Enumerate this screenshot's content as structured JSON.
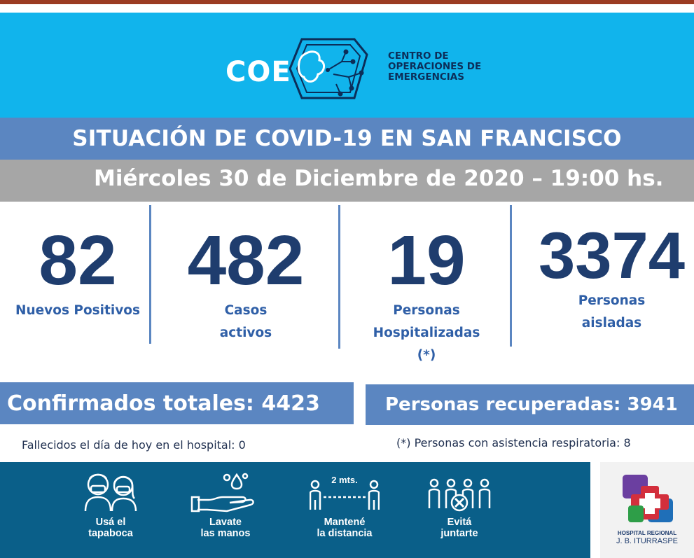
{
  "logo": {
    "acronym": "COE",
    "line1": "CENTRO DE",
    "line2": "OPERACIONES DE",
    "line3": "EMERGENCIAS"
  },
  "title": "SITUACIÓN DE COVID-19 EN SAN FRANCISCO",
  "date": "Miércoles 30 de Diciembre de 2020 – 19:00 hs.",
  "stats": [
    {
      "value": "82",
      "label_lines": [
        "Nuevos Positivos"
      ]
    },
    {
      "value": "482",
      "label_lines": [
        "Casos",
        "activos"
      ]
    },
    {
      "value": "19",
      "label_lines": [
        "Personas",
        "Hospitalizadas",
        "(*)"
      ]
    },
    {
      "value": "3374",
      "label_lines": [
        "Personas",
        "aisladas"
      ]
    }
  ],
  "totals": {
    "confirmed": "Confirmados totales: 4423",
    "recovered": "Personas recuperadas: 3941"
  },
  "notes": {
    "deceased": "Fallecidos el día de hoy en el hospital: 0",
    "respiratory": "(*) Personas con asistencia respiratoria: 8"
  },
  "tips": [
    {
      "icon": "face-mask-icon",
      "line1": "Usá el",
      "line2": "tapaboca"
    },
    {
      "icon": "hand-wash-icon",
      "line1": "Lavate",
      "line2": "las manos"
    },
    {
      "icon": "social-distance-icon",
      "line1": "Mantené",
      "line2": "la distancia",
      "badge": "2 mts."
    },
    {
      "icon": "no-gathering-icon",
      "line1": "Evitá",
      "line2": "juntarte"
    }
  ],
  "hospital": {
    "line1": "HOSPITAL REGIONAL",
    "line2": "J. B. ITURRASPE"
  },
  "colors": {
    "header_bg": "#11b4ec",
    "band_blue": "#5b86c1",
    "band_gray": "#a6a6a6",
    "number": "#1f3d6e",
    "label": "#2f5fa7",
    "footer_bg": "#0a5f89"
  }
}
